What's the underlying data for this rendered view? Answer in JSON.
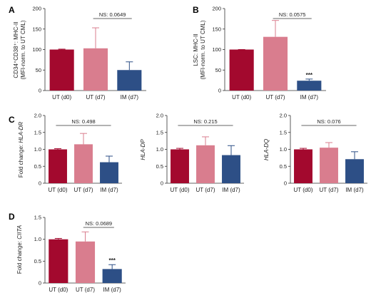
{
  "colors": {
    "UT_d0": "#a3092e",
    "UT_d7": "#d97d8e",
    "IM_d7": "#2d4f86"
  },
  "chart_data": [
    {
      "panel": "A",
      "type": "bar",
      "categories": [
        "UT (d0)",
        "UT (d7)",
        "IM (d7)"
      ],
      "values": [
        100,
        103,
        50
      ],
      "errors": [
        1,
        50,
        20
      ],
      "ylabel_lines": [
        "CD34⁺CD38⁺: MHC-II",
        "(MFI-norm. to UT CML)"
      ],
      "ylabel_italic": false,
      "ylim": [
        0,
        200
      ],
      "yticks": [
        0,
        50,
        100,
        150,
        200
      ],
      "yticklabels": [
        "0",
        "50",
        "100",
        "150",
        "200"
      ],
      "significance": {
        "text": "NS: 0.0649",
        "from": 1,
        "to": 2
      },
      "stars": []
    },
    {
      "panel": "B",
      "type": "bar",
      "categories": [
        "UT (d0)",
        "UT (d7)",
        "IM (d7)"
      ],
      "values": [
        100,
        131,
        24
      ],
      "errors": [
        0,
        40,
        4
      ],
      "ylabel_lines": [
        "LSC: MHC-II",
        "(MFI-norm. to UT CML)"
      ],
      "ylabel_italic": false,
      "ylim": [
        0,
        200
      ],
      "yticks": [
        0,
        50,
        100,
        150,
        200
      ],
      "yticklabels": [
        "0",
        "50",
        "100",
        "150",
        "200"
      ],
      "significance": {
        "text": "NS: 0.0575",
        "from": 1,
        "to": 2
      },
      "stars": [
        {
          "bar": 2,
          "text": "***"
        }
      ]
    },
    {
      "panel": "C",
      "type": "bar",
      "categories": [
        "UT (d0)",
        "UT (d7)",
        "IM (d7)"
      ],
      "values": [
        1.0,
        1.15,
        0.62
      ],
      "errors": [
        0.02,
        0.32,
        0.18
      ],
      "ylabel_lines": [
        "Fold change: HLA-DR"
      ],
      "ylabel_prefix": "Fold change: ",
      "ylabel_italic_part": "HLA-DR",
      "ylim": [
        0,
        2.0
      ],
      "yticks": [
        0,
        0.5,
        1.0,
        1.5,
        2.0
      ],
      "yticklabels": [
        "0",
        "0.5",
        "1.0",
        "1.5",
        "2.0"
      ],
      "significance": {
        "text": "NS: 0.498",
        "from": 0,
        "to": 2
      },
      "stars": []
    },
    {
      "panel": "C2",
      "type": "bar",
      "categories": [
        "UT (d0)",
        "UT (d7)",
        "IM (d7)"
      ],
      "values": [
        1.0,
        1.12,
        0.83
      ],
      "errors": [
        0.03,
        0.25,
        0.28
      ],
      "ylabel_lines": [
        "HLA-DP"
      ],
      "ylabel_italic": true,
      "ylim": [
        0,
        2.0
      ],
      "yticks": [
        0,
        0.5,
        1.0,
        1.5,
        2.0
      ],
      "yticklabels": [
        "0",
        "0.5",
        "1.0",
        "1.5",
        "2.0"
      ],
      "significance": {
        "text": "NS: 0.215",
        "from": 0,
        "to": 2
      },
      "stars": []
    },
    {
      "panel": "C3",
      "type": "bar",
      "categories": [
        "UT (d0)",
        "UT (d7)",
        "IM (d7)"
      ],
      "values": [
        1.0,
        1.05,
        0.71
      ],
      "errors": [
        0.03,
        0.15,
        0.22
      ],
      "ylabel_lines": [
        "HLA-DQ"
      ],
      "ylabel_italic": true,
      "ylim": [
        0,
        2.0
      ],
      "yticks": [
        0,
        0.5,
        1.0,
        1.5,
        2.0
      ],
      "yticklabels": [
        "0",
        "0.5",
        "1.0",
        "1.5",
        "2.0"
      ],
      "significance": {
        "text": "NS: 0.076",
        "from": 0,
        "to": 2
      },
      "stars": []
    },
    {
      "panel": "D",
      "type": "bar",
      "categories": [
        "UT (d0)",
        "UT (d7)",
        "IM (d7)"
      ],
      "values": [
        1.0,
        0.95,
        0.32
      ],
      "errors": [
        0.02,
        0.22,
        0.1
      ],
      "ylabel_lines": [
        "Fold change: CIITA"
      ],
      "ylabel_prefix": "Fold change: ",
      "ylabel_italic_part": "CIITA",
      "ylim": [
        0,
        1.5
      ],
      "yticks": [
        0,
        0.5,
        1.0,
        1.5
      ],
      "yticklabels": [
        "0",
        "0.5",
        "1.0",
        "1.5"
      ],
      "significance": {
        "text": "NS: 0.0689",
        "from": 1,
        "to": 2
      },
      "stars": [
        {
          "bar": 2,
          "text": "***"
        }
      ]
    }
  ]
}
